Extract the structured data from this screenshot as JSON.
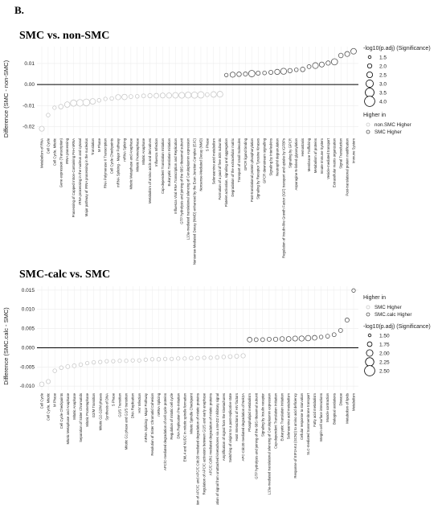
{
  "panel_label": "B.",
  "colors": {
    "gray": "#c9c9c9",
    "dark": "#555555",
    "zero_line": "#000000",
    "grid": "#ececec"
  },
  "chart_data": [
    {
      "type": "scatter",
      "title": "SMC vs. non-SMC",
      "xlabel": "",
      "ylabel": "Difference (SMC - non-SMC)",
      "ylim": [
        -0.024,
        0.018
      ],
      "yticks": [
        -0.02,
        -0.01,
        0.0,
        0.01
      ],
      "ytick_labels": [
        "-0.02",
        "-0.01",
        "0.00",
        "0.01"
      ],
      "size_legend": {
        "title": "-log10(p.adj) (Significance)",
        "labels": [
          "1.5",
          "2.0",
          "2.5",
          "3.0",
          "3.5",
          "4.0"
        ]
      },
      "color_legend": {
        "title": "Higher in",
        "labels": [
          "non.SMC Higher",
          "SMC Higher"
        ]
      },
      "points": [
        {
          "x": "Metabolism of RNA",
          "y": -0.021,
          "s": 2.2,
          "g": 0
        },
        {
          "x": "Cell Cycle",
          "y": -0.0145,
          "s": 1.6,
          "g": 0
        },
        {
          "x": "Cell Cycle, Mitotic",
          "y": -0.011,
          "s": 1.5,
          "g": 0
        },
        {
          "x": "Gene expression (Transcription)",
          "y": -0.0105,
          "s": 2.0,
          "g": 0
        },
        {
          "x": "rRNA processing",
          "y": -0.0095,
          "s": 2.4,
          "g": 0
        },
        {
          "x": "Processing of Capped Intron-Containing Pre-mRNA",
          "y": -0.0088,
          "s": 2.8,
          "g": 0
        },
        {
          "x": "rRNA processing in the nucleus and cytosol",
          "y": -0.0087,
          "s": 3.0,
          "g": 0
        },
        {
          "x": "Major pathway of rRNA processing in the nucleolus",
          "y": -0.0085,
          "s": 3.1,
          "g": 0
        },
        {
          "x": "Translation",
          "y": -0.008,
          "s": 2.5,
          "g": 0
        },
        {
          "x": "M Phase",
          "y": -0.0075,
          "s": 1.6,
          "g": 0
        },
        {
          "x": "RNA Polymerase II Transcription",
          "y": -0.0068,
          "s": 1.5,
          "g": 0
        },
        {
          "x": "Cell Cycle Checkpoints",
          "y": -0.0066,
          "s": 1.6,
          "g": 0
        },
        {
          "x": "mRNA Splicing - Major Pathway",
          "y": -0.006,
          "s": 2.3,
          "g": 0
        },
        {
          "x": "mRNA Splicing",
          "y": -0.0059,
          "s": 2.4,
          "g": 0
        },
        {
          "x": "Mitotic Metaphase and Anaphase",
          "y": -0.0057,
          "s": 1.7,
          "g": 0
        },
        {
          "x": "Mitotic Prometaphase",
          "y": -0.0056,
          "s": 1.6,
          "g": 0
        },
        {
          "x": "Mitotic Anaphase",
          "y": -0.0054,
          "s": 1.7,
          "g": 0
        },
        {
          "x": "Metabolism of amino acids and derivatives",
          "y": -0.0053,
          "s": 1.9,
          "g": 0
        },
        {
          "x": "Influenza Infection",
          "y": -0.0053,
          "s": 2.1,
          "g": 0
        },
        {
          "x": "Cap-dependent Translation Initiation",
          "y": -0.0052,
          "s": 2.2,
          "g": 0
        },
        {
          "x": "Eukaryotic Translation Initiation",
          "y": -0.0052,
          "s": 2.3,
          "g": 0
        },
        {
          "x": "Influenza Viral RNA Transcription and Replication",
          "y": -0.0051,
          "s": 2.5,
          "g": 0
        },
        {
          "x": "GTP hydrolysis and joining of the 60S ribosomal subunit",
          "y": -0.0051,
          "s": 2.6,
          "g": 0
        },
        {
          "x": "L13a-mediated translational silencing of Ceruloplasmin expression",
          "y": -0.005,
          "s": 2.7,
          "g": 0
        },
        {
          "x": "Nonsense-Mediated Decay (NMD) enhanced by the Exon Junction Complex (EJC)",
          "y": -0.005,
          "s": 2.8,
          "g": 0
        },
        {
          "x": "Nonsense-Mediated Decay (NMD)",
          "y": -0.0049,
          "s": 2.9,
          "g": 0
        },
        {
          "x": "S Phase",
          "y": -0.0048,
          "s": 1.7,
          "g": 0
        },
        {
          "x": "Selenoamino acid metabolism",
          "y": -0.0047,
          "s": 2.5,
          "g": 0
        },
        {
          "x": "Formation of a pool of free 40S subunits",
          "y": -0.0046,
          "s": 2.6,
          "g": 0
        },
        {
          "x": "Platelet activation, signaling and aggregation",
          "y": 0.0045,
          "s": 1.5,
          "g": 1
        },
        {
          "x": "Degradation of the extracellular matrix",
          "y": 0.0047,
          "s": 2.3,
          "g": 1
        },
        {
          "x": "Transport of small molecules",
          "y": 0.0049,
          "s": 2.0,
          "g": 1
        },
        {
          "x": "GPCR ligand binding",
          "y": 0.005,
          "s": 1.8,
          "g": 1
        },
        {
          "x": "Post-translational protein phosphorylation",
          "y": 0.0052,
          "s": 2.9,
          "g": 1
        },
        {
          "x": "Signaling by Receptor Tyrosine Kinases",
          "y": 0.0054,
          "s": 1.8,
          "g": 1
        },
        {
          "x": "GPCR downstream signalling",
          "y": 0.0055,
          "s": 1.6,
          "g": 1
        },
        {
          "x": "Signaling by Interleukins",
          "y": 0.0058,
          "s": 1.8,
          "g": 1
        },
        {
          "x": "Neutrophil degranulation",
          "y": 0.006,
          "s": 2.3,
          "g": 1
        },
        {
          "x": "Regulation of Insulin-like Growth Factor (IGF) transport and uptake by IGFBPs",
          "y": 0.0063,
          "s": 2.7,
          "g": 1
        },
        {
          "x": "Signaling by GPCR",
          "y": 0.0066,
          "s": 1.9,
          "g": 1
        },
        {
          "x": "Asparagine N-linked glycosylation",
          "y": 0.007,
          "s": 1.6,
          "g": 1
        },
        {
          "x": "Hemostasis",
          "y": 0.0072,
          "s": 2.0,
          "g": 1
        },
        {
          "x": "Membrane Trafficking",
          "y": 0.0085,
          "s": 1.7,
          "g": 1
        },
        {
          "x": "Metabolism of proteins",
          "y": 0.009,
          "s": 2.6,
          "g": 1
        },
        {
          "x": "Innate Immune System",
          "y": 0.0095,
          "s": 2.2,
          "g": 1
        },
        {
          "x": "Vesicle-mediated transport",
          "y": 0.0102,
          "s": 1.9,
          "g": 1
        },
        {
          "x": "Extracellular matrix organization",
          "y": 0.0108,
          "s": 2.8,
          "g": 1
        },
        {
          "x": "Signal Transduction",
          "y": 0.0138,
          "s": 2.0,
          "g": 1
        },
        {
          "x": "Post-translational protein modification",
          "y": 0.0145,
          "s": 2.2,
          "g": 1
        },
        {
          "x": "Immune System",
          "y": 0.0158,
          "s": 2.5,
          "g": 1
        }
      ]
    },
    {
      "type": "scatter",
      "title": "SMC-calc vs. SMC",
      "xlabel": "",
      "ylabel": "Difference (SMC.calc - SMC)",
      "ylim": [
        -0.011,
        0.016
      ],
      "yticks": [
        -0.01,
        -0.005,
        0.0,
        0.005,
        0.01,
        0.015
      ],
      "ytick_labels": [
        "-0.010",
        "-0.005",
        "0.000",
        "0.005",
        "0.010",
        "0.015"
      ],
      "size_legend": {
        "title": "-log10(p.adj) (Significance)",
        "labels": [
          "1.50",
          "1.75",
          "2.00",
          "2.25",
          "2.50"
        ]
      },
      "color_legend": {
        "title": "Higher in",
        "labels": [
          "SMC Higher",
          "SMC.calc Higher"
        ]
      },
      "points": [
        {
          "x": "Cell Cycle",
          "y": -0.0095,
          "s": 2.0,
          "g": 0
        },
        {
          "x": "Cell Cycle, Mitotic",
          "y": -0.0088,
          "s": 1.8,
          "g": 0
        },
        {
          "x": "M Phase",
          "y": -0.006,
          "s": 1.6,
          "g": 0
        },
        {
          "x": "Cell Cycle Checkpoints",
          "y": -0.0052,
          "s": 1.6,
          "g": 0
        },
        {
          "x": "Mitotic Metaphase and Anaphase",
          "y": -0.0049,
          "s": 1.7,
          "g": 0
        },
        {
          "x": "Mitotic Anaphase",
          "y": -0.0047,
          "s": 1.7,
          "g": 0
        },
        {
          "x": "Separation of Sister Chromatids",
          "y": -0.0044,
          "s": 1.6,
          "g": 0
        },
        {
          "x": "Mitotic Prometaphase",
          "y": -0.004,
          "s": 1.5,
          "g": 0
        },
        {
          "x": "G2/M Transition",
          "y": -0.0038,
          "s": 1.5,
          "g": 0
        },
        {
          "x": "Mitotic G2-G2/M phases",
          "y": -0.0037,
          "s": 1.5,
          "g": 0
        },
        {
          "x": "Synthesis of DNA",
          "y": -0.0035,
          "s": 1.5,
          "g": 0
        },
        {
          "x": "S Phase",
          "y": -0.0035,
          "s": 1.5,
          "g": 0
        },
        {
          "x": "G1/S Transition",
          "y": -0.0034,
          "s": 1.5,
          "g": 0
        },
        {
          "x": "Mitotic G1 phase and G1/S transition",
          "y": -0.0034,
          "s": 1.5,
          "g": 0
        },
        {
          "x": "DNA Replication",
          "y": -0.0033,
          "s": 1.5,
          "g": 0
        },
        {
          "x": "HIV Infection",
          "y": -0.0033,
          "s": 1.5,
          "g": 0
        },
        {
          "x": "mRNA Splicing - Major Pathway",
          "y": -0.0031,
          "s": 1.5,
          "g": 0
        },
        {
          "x": "Resolution of Sister Chromatid Cohesion",
          "y": -0.003,
          "s": 1.5,
          "g": 0
        },
        {
          "x": "mRNA Splicing",
          "y": -0.003,
          "s": 1.6,
          "g": 0
        },
        {
          "x": "APC/C-mediated degradation of cell cycle proteins",
          "y": -0.0029,
          "s": 1.5,
          "g": 0
        },
        {
          "x": "Regulation of mitotic cell cycle",
          "y": -0.0029,
          "s": 1.5,
          "g": 0
        },
        {
          "x": "DNA Replication Pre-Initiation",
          "y": -0.0028,
          "s": 1.5,
          "g": 0
        },
        {
          "x": "EML4 and NUDC in mitotic spindle formation",
          "y": -0.0028,
          "s": 1.5,
          "g": 0
        },
        {
          "x": "Mitotic Spindle Checkpoint",
          "y": -0.0027,
          "s": 1.6,
          "g": 0
        },
        {
          "x": "Activation of APC/C and APC/C:Cdc20 mediated degradation of mitotic proteins",
          "y": -0.0027,
          "s": 1.6,
          "g": 0
        },
        {
          "x": "Regulation of APC/C activators between G1/S and early anaphase",
          "y": -0.0026,
          "s": 1.5,
          "g": 0
        },
        {
          "x": "APC/C:Cdh1 mediated degradation of mitotic proteins",
          "y": -0.0026,
          "s": 1.5,
          "g": 0
        },
        {
          "x": "Amplification of signal from unattached kinetochores via a MAD2 inhibitory signal",
          "y": -0.0025,
          "s": 1.6,
          "g": 0
        },
        {
          "x": "Amplification of signal from the kinetochores",
          "y": -0.0024,
          "s": 1.6,
          "g": 0
        },
        {
          "x": "Switching of origins to a post-replicative state",
          "y": -0.0023,
          "s": 1.7,
          "g": 0
        },
        {
          "x": "Host Interactions of HIV factors",
          "y": -0.0022,
          "s": 1.8,
          "g": 0
        },
        {
          "x": "APC-Cdc20 mediated degradation of Nek2A",
          "y": -0.0021,
          "s": 1.9,
          "g": 0
        },
        {
          "x": "Phospholipid metabolism",
          "y": 0.0021,
          "s": 2.1,
          "g": 1
        },
        {
          "x": "GTP hydrolysis and joining of the 60S ribosomal subunit",
          "y": 0.0021,
          "s": 1.7,
          "g": 1
        },
        {
          "x": "Signaling by Insulin receptor",
          "y": 0.0021,
          "s": 1.7,
          "g": 1
        },
        {
          "x": "L13a-mediated translational silencing of Ceruloplasmin expression",
          "y": 0.0022,
          "s": 1.8,
          "g": 1
        },
        {
          "x": "Cap-dependent Translation Initiation",
          "y": 0.0022,
          "s": 1.9,
          "g": 1
        },
        {
          "x": "Eukaryotic Translation Initiation",
          "y": 0.0023,
          "s": 2.0,
          "g": 1
        },
        {
          "x": "Selenoamino acid metabolism",
          "y": 0.0023,
          "s": 2.1,
          "g": 1
        },
        {
          "x": "Response of EIF2AK4 (GCN2) to amino acid deficiency",
          "y": 0.0024,
          "s": 2.2,
          "g": 1
        },
        {
          "x": "Cellular response to starvation",
          "y": 0.0024,
          "s": 2.3,
          "g": 1
        },
        {
          "x": "SLC-mediated transmembrane transport",
          "y": 0.0025,
          "s": 2.4,
          "g": 1
        },
        {
          "x": "Fatty acid metabolism",
          "y": 0.0026,
          "s": 2.1,
          "g": 1
        },
        {
          "x": "Integrin cell surface interactions",
          "y": 0.0028,
          "s": 1.6,
          "g": 1
        },
        {
          "x": "Muscle contraction",
          "y": 0.003,
          "s": 1.7,
          "g": 1
        },
        {
          "x": "Biological oxidations",
          "y": 0.0034,
          "s": 1.7,
          "g": 1
        },
        {
          "x": "Disease",
          "y": 0.0045,
          "s": 1.7,
          "g": 1
        },
        {
          "x": "Metabolism of lipids",
          "y": 0.0072,
          "s": 1.8,
          "g": 1
        },
        {
          "x": "Metabolism",
          "y": 0.0149,
          "s": 1.5,
          "g": 1
        }
      ]
    }
  ]
}
